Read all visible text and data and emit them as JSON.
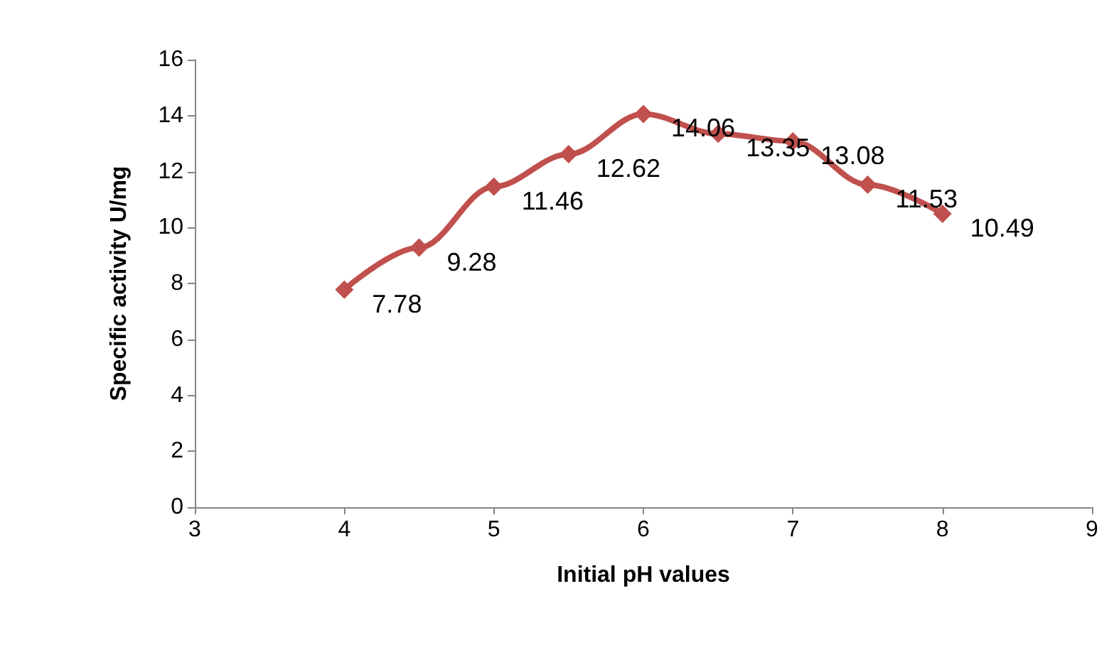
{
  "chart_data": {
    "type": "line",
    "xlabel": "Initial pH values",
    "ylabel": "Specific activity U/mg",
    "x": [
      4,
      4.5,
      5,
      5.5,
      6,
      6.5,
      7,
      7.5,
      8
    ],
    "series": [
      {
        "color": "#c0504d",
        "values": [
          7.78,
          9.28,
          11.46,
          12.62,
          14.06,
          13.35,
          13.08,
          11.53,
          10.49
        ]
      }
    ],
    "xlim": [
      3,
      9
    ],
    "xticks": [
      3,
      4,
      5,
      6,
      7,
      8,
      9
    ],
    "ylim": [
      0,
      16
    ],
    "yticks": [
      0,
      2,
      4,
      6,
      8,
      10,
      12,
      14,
      16
    ],
    "grid": false,
    "marker": "diamond",
    "line_style": "solid",
    "data_labels": true
  }
}
